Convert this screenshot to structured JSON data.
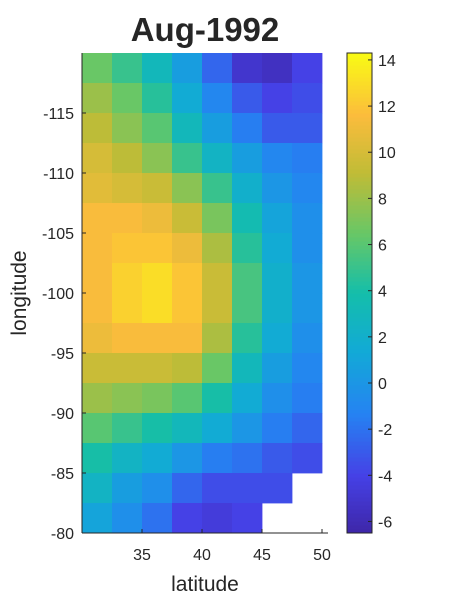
{
  "chart_data": {
    "type": "heatmap",
    "title": "Aug-1992",
    "xlabel": "latitude",
    "ylabel": "longitude",
    "x": [
      31.25,
      33.75,
      36.25,
      38.75,
      41.25,
      43.75,
      46.25,
      48.75
    ],
    "y": [
      -118.75,
      -116.25,
      -113.75,
      -111.25,
      -108.75,
      -106.25,
      -103.75,
      -101.25,
      -98.75,
      -96.25,
      -93.75,
      -91.25,
      -88.75,
      -86.25,
      -83.75,
      -81.25
    ],
    "xlim": [
      30,
      50.5
    ],
    "ylim": [
      -120,
      -80
    ],
    "xticks": [
      35,
      40,
      45,
      50
    ],
    "yticks": [
      -115,
      -110,
      -105,
      -100,
      -95,
      -90,
      -85,
      -80
    ],
    "y_reversed": true,
    "values": [
      [
        6.5,
        5.0,
        3.0,
        0.5,
        -2.5,
        -5.0,
        -5.5,
        -4.0
      ],
      [
        8.0,
        6.5,
        4.5,
        1.5,
        -1.0,
        -3.0,
        -4.0,
        -3.5
      ],
      [
        9.0,
        7.5,
        6.0,
        3.0,
        0.5,
        -1.5,
        -3.0,
        -3.0
      ],
      [
        10.0,
        9.0,
        7.5,
        5.0,
        2.5,
        0.5,
        -1.0,
        -1.5
      ],
      [
        10.5,
        10.0,
        9.5,
        7.5,
        5.0,
        2.0,
        0.0,
        -1.0
      ],
      [
        11.5,
        11.5,
        11.0,
        9.5,
        7.0,
        3.5,
        1.0,
        -0.5
      ],
      [
        11.5,
        12.0,
        12.0,
        11.0,
        8.5,
        4.5,
        1.5,
        -0.5
      ],
      [
        11.5,
        12.5,
        13.0,
        12.0,
        9.5,
        5.5,
        2.0,
        0.0
      ],
      [
        11.5,
        12.5,
        13.0,
        12.0,
        9.5,
        5.5,
        2.0,
        0.0
      ],
      [
        11.0,
        11.5,
        11.5,
        11.5,
        8.5,
        4.5,
        1.5,
        -0.5
      ],
      [
        9.5,
        9.5,
        9.5,
        9.0,
        6.5,
        3.0,
        0.5,
        -1.0
      ],
      [
        8.0,
        7.5,
        7.0,
        6.0,
        4.0,
        1.5,
        -0.5,
        -1.5
      ],
      [
        6.0,
        5.0,
        4.0,
        3.0,
        1.5,
        0.0,
        -1.5,
        -2.5
      ],
      [
        4.0,
        2.5,
        1.5,
        0.0,
        -1.5,
        -2.0,
        -3.0,
        -3.5
      ],
      [
        2.5,
        0.5,
        -0.5,
        -2.5,
        -3.5,
        -3.5,
        -3.5,
        null
      ],
      [
        1.0,
        -0.5,
        -2.0,
        -4.0,
        -4.5,
        -4.0,
        null,
        null
      ]
    ],
    "colorbar": {
      "colormap": "parula",
      "clim": [
        -6.5,
        14.3
      ],
      "ticks": [
        -6,
        -4,
        -2,
        0,
        2,
        4,
        6,
        8,
        10,
        12,
        14
      ]
    }
  }
}
